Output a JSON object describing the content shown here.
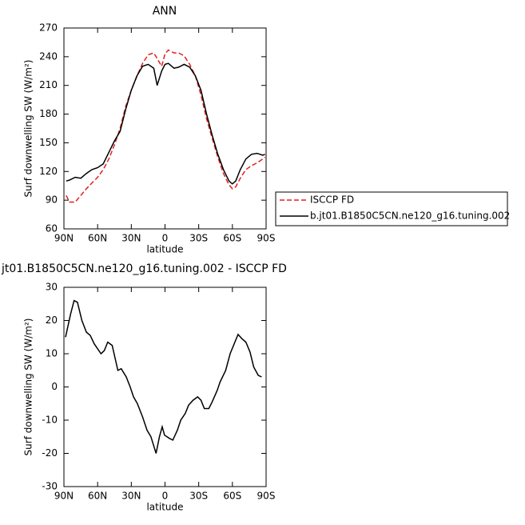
{
  "chart_data": [
    {
      "type": "line",
      "title": "ANN",
      "xlabel": "latitude",
      "ylabel": "Surf downwelling SW (W/m²)",
      "x": [
        88,
        85,
        80,
        75,
        70,
        65,
        60,
        55,
        50,
        45,
        40,
        35,
        30,
        25,
        20,
        15,
        10,
        7,
        3,
        0,
        -3,
        -8,
        -12,
        -17,
        -22,
        -27,
        -32,
        -37,
        -42,
        -47,
        -52,
        -57,
        -60,
        -63,
        -67,
        -72,
        -77,
        -82,
        -87,
        -89
      ],
      "series": [
        {
          "name": "ISCCP FD",
          "color": "#e0201f",
          "dash": true,
          "values": [
            95,
            88,
            88,
            95,
            102,
            108,
            114,
            122,
            133,
            148,
            165,
            188,
            205,
            220,
            233,
            242,
            244,
            238,
            230,
            243,
            247,
            244,
            244,
            241,
            232,
            220,
            200,
            175,
            155,
            135,
            118,
            106,
            102,
            104,
            113,
            122,
            126,
            129,
            133,
            135
          ]
        },
        {
          "name": "b.jt01.B1850C5CN.ne120_g16.tuning.002",
          "color": "#000000",
          "dash": false,
          "values": [
            110,
            111,
            114,
            113,
            118,
            122,
            124,
            128,
            140,
            152,
            162,
            185,
            205,
            220,
            230,
            232,
            228,
            210,
            225,
            232,
            233,
            228,
            229,
            232,
            229,
            220,
            205,
            180,
            158,
            138,
            122,
            110,
            107,
            110,
            122,
            133,
            138,
            139,
            137,
            138
          ]
        }
      ],
      "xlim": [
        90,
        -90
      ],
      "xticks": [
        {
          "value": 90,
          "label": "90N"
        },
        {
          "value": 60,
          "label": "60N"
        },
        {
          "value": 30,
          "label": "30N"
        },
        0,
        {
          "value": -30,
          "label": "30S"
        },
        {
          "value": -60,
          "label": "60S"
        },
        {
          "value": -90,
          "label": "90S"
        }
      ],
      "ylim": [
        60,
        270
      ],
      "yticks": [
        60,
        90,
        120,
        150,
        180,
        210,
        240,
        270
      ]
    },
    {
      "type": "line",
      "title": "jt01.B1850C5CN.ne120_g16.tuning.002 - ISCCP FD",
      "xlabel": "latitude",
      "ylabel": "Surf downwelling SW (W/m²)",
      "x": [
        88.6,
        84,
        81,
        78,
        74,
        70,
        66.5,
        63,
        57,
        54,
        51,
        47,
        42,
        39,
        34.5,
        31,
        28,
        24.6,
        20,
        16,
        12.5,
        8,
        5,
        2.5,
        0.4,
        -4,
        -7,
        -11,
        -14,
        -18,
        -21,
        -25,
        -29,
        -32,
        -35,
        -39,
        -42,
        -46.5,
        -49,
        -54,
        -58,
        -65,
        -68.6,
        -72,
        -75.7,
        -79,
        -83,
        -86
      ],
      "color": "#000000",
      "values": [
        15,
        22,
        26,
        25.5,
        20,
        16.5,
        15.5,
        13,
        10,
        11,
        13.5,
        12.5,
        5,
        5.5,
        3,
        0,
        -3,
        -5,
        -9,
        -13,
        -15,
        -20,
        -15,
        -12,
        -14.5,
        -15.5,
        -16,
        -13,
        -10,
        -8,
        -5.5,
        -4,
        -3,
        -4,
        -6.5,
        -6.5,
        -4.5,
        -1,
        1.5,
        5,
        10,
        15.8,
        14.5,
        13.5,
        10.5,
        6,
        3.5,
        3
      ],
      "xlim": [
        90,
        -90
      ],
      "xticks": [
        {
          "value": 90,
          "label": "90N"
        },
        {
          "value": 60,
          "label": "60N"
        },
        {
          "value": 30,
          "label": "30N"
        },
        0,
        {
          "value": -30,
          "label": "30S"
        },
        {
          "value": -60,
          "label": "60S"
        },
        {
          "value": -90,
          "label": "90S"
        }
      ],
      "ylim": [
        -30,
        30
      ],
      "yticks": [
        -30,
        -20,
        -10,
        0,
        10,
        20,
        30
      ]
    }
  ]
}
